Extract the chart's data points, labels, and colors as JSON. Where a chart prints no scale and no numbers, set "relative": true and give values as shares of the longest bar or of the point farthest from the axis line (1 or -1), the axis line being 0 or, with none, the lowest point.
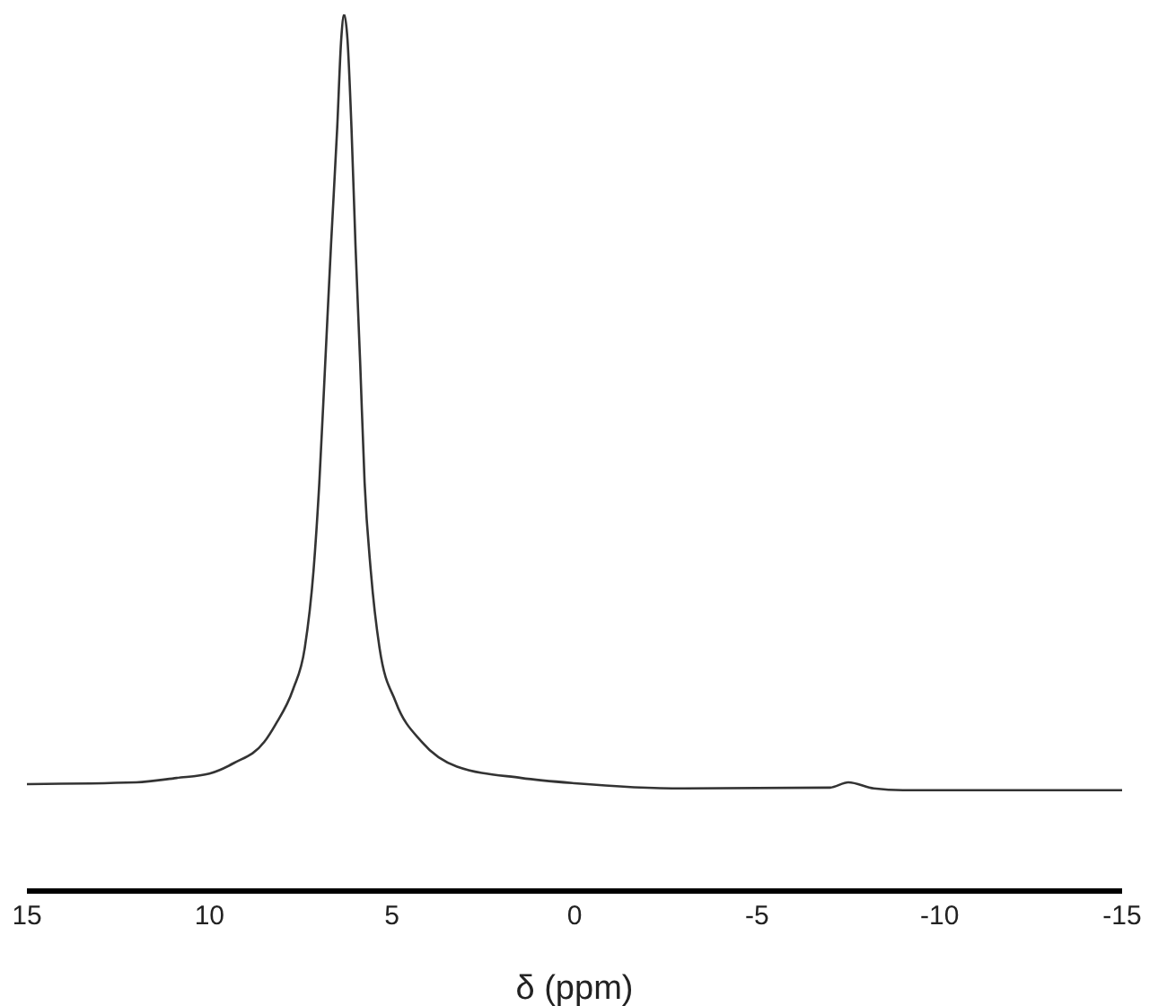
{
  "chart_data": {
    "type": "line",
    "xlabel": "δ (ppm)",
    "relative": true,
    "xlim": [
      15,
      -15
    ],
    "xticks": [
      15,
      10,
      5,
      0,
      -5,
      -10,
      -15
    ],
    "grid": false,
    "legend": false,
    "marker": "none",
    "line_style": "solid",
    "series": [
      {
        "color": "#333333",
        "x": [
          15,
          12,
          10.9,
          10,
          9.33,
          8.5,
          8.19,
          7.71,
          7.39,
          7.15,
          6.99,
          6.83,
          6.67,
          6.5,
          6.39,
          6.31,
          6.22,
          6.11,
          6.0,
          5.87,
          5.75,
          5.58,
          5.34,
          4.9,
          4.18,
          3.22,
          1.46,
          0,
          -3,
          -7,
          -7.5,
          -8.2,
          -9,
          -15
        ],
        "values": [
          0.122,
          0.124,
          0.129,
          0.134,
          0.146,
          0.17,
          0.19,
          0.23,
          0.277,
          0.365,
          0.466,
          0.601,
          0.737,
          0.871,
          0.972,
          1,
          0.972,
          0.871,
          0.737,
          0.601,
          0.466,
          0.365,
          0.277,
          0.216,
          0.17,
          0.142,
          0.129,
          0.123,
          0.117,
          0.118,
          0.124,
          0.117,
          0.115,
          0.115
        ]
      }
    ]
  }
}
